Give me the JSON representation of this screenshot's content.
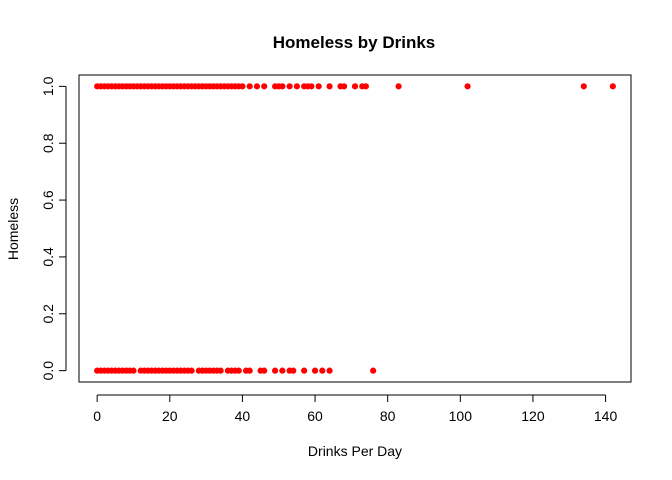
{
  "chart_data": {
    "type": "scatter",
    "title": "Homeless by Drinks",
    "xlabel": "Drinks Per Day",
    "ylabel": "Homeless",
    "xlim": [
      -5,
      147
    ],
    "ylim": [
      -0.04,
      1.04
    ],
    "xticks": [
      0,
      20,
      40,
      60,
      80,
      100,
      120,
      140
    ],
    "yticks": [
      0.0,
      0.2,
      0.4,
      0.6,
      0.8,
      1.0
    ],
    "ytick_labels": [
      "0.0",
      "0.2",
      "0.4",
      "0.6",
      "0.8",
      "1.0"
    ],
    "grid": false,
    "legend": "none",
    "point_color": "#ff0000",
    "series": [
      {
        "x": [
          0,
          1,
          2,
          3,
          4,
          5,
          6,
          7,
          8,
          9,
          10,
          11,
          12,
          13,
          14,
          15,
          16,
          17,
          18,
          19,
          20,
          21,
          22,
          23,
          24,
          25,
          26,
          27,
          28,
          29,
          30,
          31,
          32,
          33,
          34,
          35,
          36,
          37,
          38,
          39,
          40,
          42,
          44,
          46,
          49,
          50,
          51,
          53,
          55,
          57,
          58,
          59,
          61,
          64,
          67,
          68,
          71,
          73,
          74,
          83,
          102,
          134,
          142
        ],
        "y": [
          1,
          1,
          1,
          1,
          1,
          1,
          1,
          1,
          1,
          1,
          1,
          1,
          1,
          1,
          1,
          1,
          1,
          1,
          1,
          1,
          1,
          1,
          1,
          1,
          1,
          1,
          1,
          1,
          1,
          1,
          1,
          1,
          1,
          1,
          1,
          1,
          1,
          1,
          1,
          1,
          1,
          1,
          1,
          1,
          1,
          1,
          1,
          1,
          1,
          1,
          1,
          1,
          1,
          1,
          1,
          1,
          1,
          1,
          1,
          1,
          1,
          1,
          1
        ]
      },
      {
        "x": [
          0,
          1,
          2,
          3,
          4,
          5,
          6,
          7,
          8,
          9,
          10,
          12,
          13,
          14,
          15,
          16,
          17,
          18,
          19,
          20,
          21,
          22,
          23,
          24,
          25,
          26,
          28,
          29,
          30,
          31,
          32,
          33,
          34,
          36,
          37,
          38,
          39,
          41,
          42,
          45,
          46,
          49,
          51,
          53,
          54,
          57,
          60,
          62,
          64,
          76
        ],
        "y": [
          0,
          0,
          0,
          0,
          0,
          0,
          0,
          0,
          0,
          0,
          0,
          0,
          0,
          0,
          0,
          0,
          0,
          0,
          0,
          0,
          0,
          0,
          0,
          0,
          0,
          0,
          0,
          0,
          0,
          0,
          0,
          0,
          0,
          0,
          0,
          0,
          0,
          0,
          0,
          0,
          0,
          0,
          0,
          0,
          0,
          0,
          0,
          0,
          0,
          0
        ]
      }
    ]
  }
}
